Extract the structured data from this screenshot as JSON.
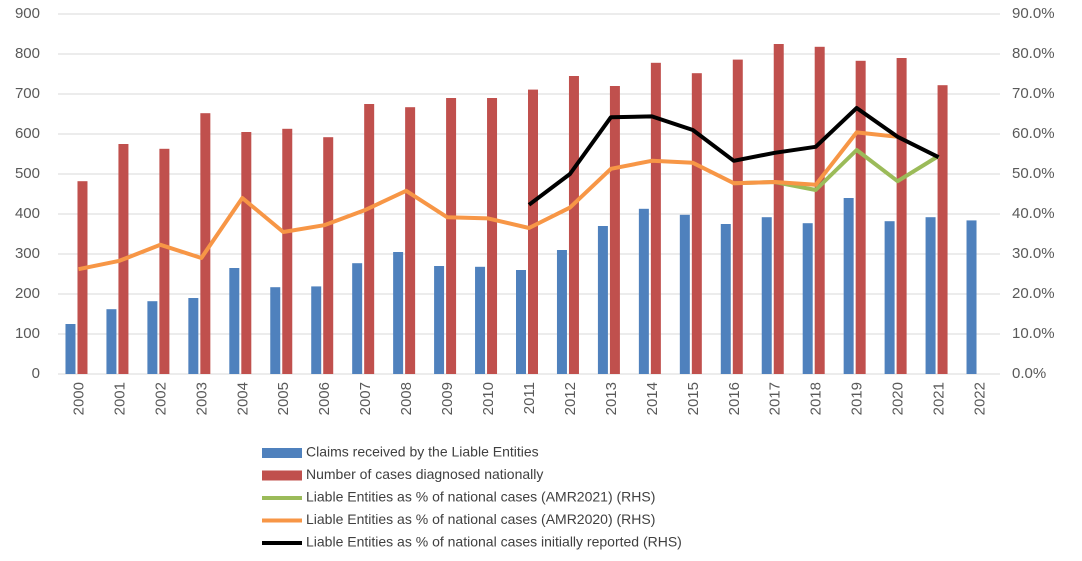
{
  "chart_data": {
    "type": "bar",
    "categories": [
      "2000",
      "2001",
      "2002",
      "2003",
      "2004",
      "2005",
      "2006",
      "2007",
      "2008",
      "2009",
      "2010",
      "2011",
      "2012",
      "2013",
      "2014",
      "2015",
      "2016",
      "2017",
      "2018",
      "2019",
      "2020",
      "2021",
      "2022"
    ],
    "series": [
      {
        "name": "Claims received by the Liable Entities",
        "type": "bar",
        "color": "#4f81bd",
        "values": [
          125,
          162,
          182,
          190,
          265,
          217,
          219,
          277,
          305,
          270,
          268,
          260,
          310,
          370,
          413,
          398,
          375,
          392,
          377,
          440,
          382,
          392,
          384
        ]
      },
      {
        "name": "Number of cases diagnosed nationally",
        "type": "bar",
        "color": "#c0504d",
        "values": [
          482,
          575,
          563,
          652,
          605,
          613,
          592,
          675,
          667,
          690,
          690,
          711,
          745,
          720,
          778,
          752,
          786,
          825,
          818,
          783,
          790,
          722,
          null
        ]
      },
      {
        "name": "Liable Entities as % of national cases (AMR2021) (RHS)",
        "type": "line",
        "axis": "y2",
        "color": "#9bbb59",
        "values": [
          null,
          null,
          null,
          null,
          null,
          null,
          null,
          null,
          null,
          null,
          null,
          null,
          null,
          null,
          null,
          null,
          47.7,
          48.0,
          46.0,
          56.0,
          48.2,
          54.5,
          null
        ]
      },
      {
        "name": "Liable Entities as % of national cases (AMR2020) (RHS)",
        "type": "line",
        "axis": "y2",
        "color": "#f79646",
        "values": [
          26.2,
          28.3,
          32.3,
          29.0,
          44.0,
          35.5,
          37.2,
          41.0,
          45.8,
          39.2,
          38.9,
          36.5,
          41.6,
          51.3,
          53.3,
          52.8,
          47.7,
          48.0,
          47.3,
          60.4,
          59.3,
          null,
          null
        ]
      },
      {
        "name": "Liable Entities as % of national cases initially reported (RHS)",
        "type": "line",
        "axis": "y2",
        "color": "#000000",
        "values": [
          null,
          null,
          null,
          null,
          null,
          null,
          null,
          null,
          null,
          null,
          null,
          42.3,
          50.0,
          64.2,
          64.4,
          61.0,
          53.3,
          55.3,
          56.8,
          66.5,
          59.3,
          54.2,
          null
        ]
      }
    ],
    "ylim": [
      0,
      900
    ],
    "yticks": [
      0,
      100,
      200,
      300,
      400,
      500,
      600,
      700,
      800,
      900
    ],
    "y2lim": [
      0,
      90
    ],
    "y2ticks": [
      {
        "value": 0,
        "label": "0.0%"
      },
      {
        "value": 10,
        "label": "10.0%"
      },
      {
        "value": 20,
        "label": "20.0%"
      },
      {
        "value": 30,
        "label": "30.0%"
      },
      {
        "value": 40,
        "label": "40.0%"
      },
      {
        "value": 50,
        "label": "50.0%"
      },
      {
        "value": 60,
        "label": "60.0%"
      },
      {
        "value": 70,
        "label": "70.0%"
      },
      {
        "value": 80,
        "label": "80.0%"
      },
      {
        "value": 90,
        "label": "90.0%"
      }
    ],
    "grid": true
  }
}
